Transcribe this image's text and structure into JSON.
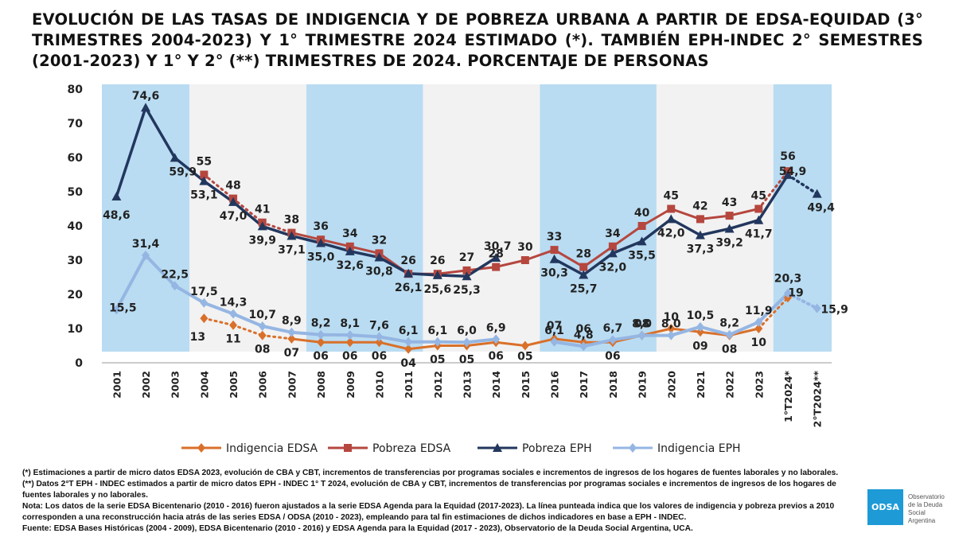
{
  "title": "EVOLUCIÓN DE LAS TASAS DE INDIGENCIA Y DE POBREZA URBANA A PARTIR DE EDSA-EQUIDAD (3° TRIMESTRES 2004-2023) Y 1° TRIMESTRE 2024 ESTIMADO (*). TAMBIÉN EPH-INDEC 2° SEMESTRES (2001-2023) Y 1° Y 2° (**) TRIMESTRES DE 2024. PORCENTAJE DE PERSONAS",
  "chart_data": {
    "type": "line",
    "categories": [
      "2001",
      "2002",
      "2003",
      "2004",
      "2005",
      "2006",
      "2007",
      "2008",
      "2009",
      "2010",
      "2011",
      "2012",
      "2013",
      "2014",
      "2015",
      "2016",
      "2017",
      "2018",
      "2019",
      "2020",
      "2021",
      "2022",
      "2023",
      "1°T2024*",
      "2°T2024**"
    ],
    "ylim": [
      0,
      80
    ],
    "yticks": [
      0,
      10,
      20,
      30,
      40,
      50,
      60,
      70,
      80
    ],
    "grid": false,
    "legend_position": "bottom",
    "series": [
      {
        "name": "Indigencia EDSA",
        "color": "#d9702a",
        "marker": "diamond",
        "values": [
          null,
          null,
          null,
          13,
          11,
          8,
          7,
          6,
          6,
          6,
          4,
          5,
          5,
          6,
          5,
          7,
          6,
          6,
          8,
          10,
          9,
          8,
          10,
          19,
          null
        ],
        "labels": [
          null,
          null,
          null,
          "13",
          "11",
          "08",
          "07",
          "06",
          "06",
          "06",
          "04",
          "05",
          "05",
          "06",
          "05",
          "07",
          "06",
          "06",
          "08",
          "10",
          "09",
          "08",
          "10",
          "19",
          null
        ]
      },
      {
        "name": "Pobreza EDSA",
        "color": "#b5473f",
        "marker": "square",
        "values": [
          null,
          null,
          null,
          55,
          48,
          41,
          38,
          36,
          34,
          32,
          26,
          26,
          27,
          28,
          30,
          33,
          28,
          34,
          40,
          45,
          42,
          43,
          45,
          56,
          null
        ],
        "labels": [
          null,
          null,
          null,
          "55",
          "48",
          "41",
          "38",
          "36",
          "34",
          "32",
          "26",
          "26",
          "27",
          "28",
          "30",
          "33",
          "28",
          "34",
          "40",
          "45",
          "42",
          "43",
          "45",
          "56",
          null
        ]
      },
      {
        "name": "Pobreza EPH",
        "color": "#22375e",
        "marker": "triangle",
        "values": [
          48.6,
          74.6,
          59.9,
          53.1,
          47.0,
          39.9,
          37.1,
          35.0,
          32.6,
          30.8,
          26.1,
          25.6,
          25.3,
          30.7,
          null,
          30.3,
          25.7,
          32.0,
          35.5,
          42.0,
          37.3,
          39.2,
          41.7,
          54.9,
          49.4
        ],
        "labels": [
          "48,6",
          "74,6",
          "59,9",
          "53,1",
          "47,0",
          "39,9",
          "37,1",
          "35,0",
          "32,6",
          "30,8",
          "26,1",
          "25,6",
          "25,3",
          "30,7",
          null,
          "30,3",
          "25,7",
          "32,0",
          "35,5",
          "42,0",
          "37,3",
          "39,2",
          "41,7",
          "54,9",
          "49,4"
        ]
      },
      {
        "name": "Indigencia EPH",
        "color": "#95b6e3",
        "marker": "diamond",
        "values": [
          15.5,
          31.4,
          22.5,
          17.5,
          14.3,
          10.7,
          8.9,
          8.2,
          8.1,
          7.6,
          6.1,
          6.1,
          6.0,
          6.9,
          null,
          6.1,
          4.8,
          6.7,
          8.0,
          8.0,
          10.5,
          8.2,
          11.9,
          20.3,
          15.9
        ],
        "labels": [
          "15,5",
          "31,4",
          "22,5",
          "17,5",
          "14,3",
          "10,7",
          "8,9",
          "8,2",
          "8,1",
          "7,6",
          "6,1",
          "6,1",
          "6,0",
          "6,9",
          null,
          "6,1",
          "4,8",
          "6,7",
          "8,0",
          "8,0",
          "10,5",
          "8,2",
          "11,9",
          "20,3",
          "15,9"
        ]
      }
    ]
  },
  "notes": [
    "(*) Estimaciones a partir de micro datos EDSA 2023, evolución de CBA y CBT, incrementos de transferencias por programas sociales e incrementos de ingresos de los hogares de fuentes laborales y no laborales.",
    "(**) Datos 2°T EPH - INDEC estimados a partir de micro datos EPH - INDEC 1° T 2024, evolución de CBA y CBT, incrementos de transferencias por programas sociales e incrementos de ingresos de los hogares de fuentes laborales y no laborales.",
    "Nota: Los datos de la serie EDSA Bicentenario (2010 - 2016) fueron ajustados a la serie EDSA Agenda para la Equidad (2017-2023). La línea punteada indica que los valores de indigencia y pobreza previos a 2010 corresponden a una reconstrucción hacia atrás de las series EDSA / ODSA (2010 - 2023), empleando para tal fin estimaciones de dichos indicadores en base a EPH - INDEC.",
    "Fuente: EDSA Bases Históricas (2004 - 2009), EDSA Bicentenario (2010 - 2016) y EDSA Agenda para la Equidad (2017 - 2023), Observatorio de la Deuda Social Argentina, UCA."
  ],
  "logo": {
    "mark": "ODSA",
    "text_lines": [
      "Observatorio",
      "de la Deuda",
      "Social Argentina"
    ]
  }
}
